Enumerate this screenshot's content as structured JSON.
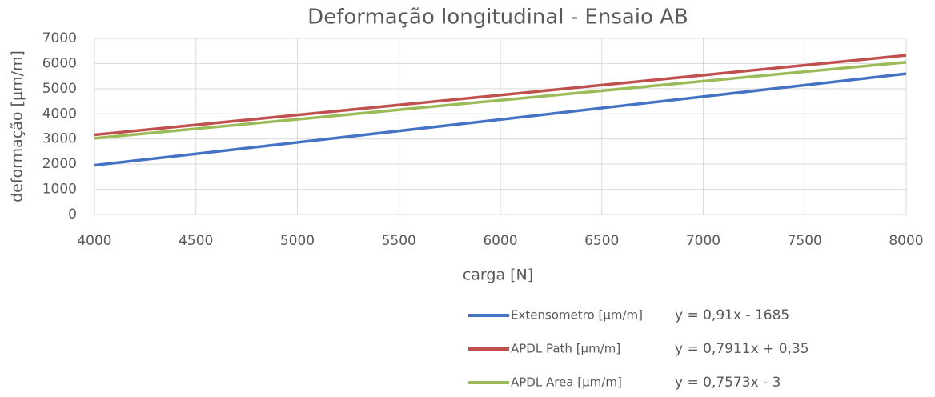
{
  "chart_data": {
    "type": "line",
    "title": "Deformação longitudinal - Ensaio AB",
    "xlabel": "carga [N]",
    "ylabel": "deformação [µm/m]",
    "x": [
      4000,
      8000
    ],
    "series": [
      {
        "name": "Extensometro [µm/m]",
        "color": "#4472c4",
        "values": [
          1955,
          5595
        ],
        "equation": "y = 0,91x - 1685"
      },
      {
        "name": "APDL Path [µm/m]",
        "color": "#c0504d",
        "values": [
          3165,
          6329
        ],
        "equation": "y = 0,7911x + 0,35"
      },
      {
        "name": "APDL Area [µm/m]",
        "color": "#9bbb59",
        "values": [
          3026,
          6055
        ],
        "equation": "y = 0,7573x - 3"
      }
    ],
    "xlim": [
      4000,
      8000
    ],
    "xticks": [
      4000,
      4500,
      5000,
      5500,
      6000,
      6500,
      7000,
      7500,
      8000
    ],
    "ylim": [
      0,
      7000
    ],
    "yticks": [
      0,
      1000,
      2000,
      3000,
      4000,
      5000,
      6000,
      7000
    ],
    "grid": true,
    "legend": "bottom-right"
  }
}
